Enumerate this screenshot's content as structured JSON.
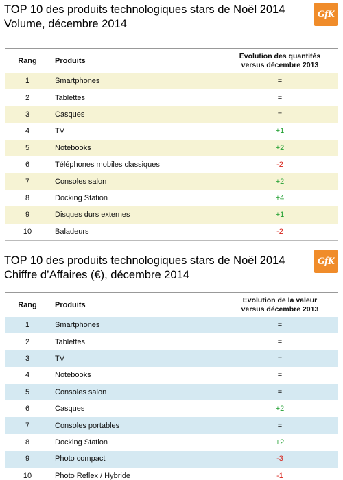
{
  "section1": {
    "title_line1": "TOP 10 des produits technologiques stars de Noël 2014",
    "title_line2": "Volume, décembre 2014",
    "logo": "GfK",
    "header": {
      "rank": "Rang",
      "product": "Produits",
      "evo_line1": "Evolution des quantités",
      "evo_line2": "versus décembre 2013"
    },
    "rows": [
      {
        "rank": "1",
        "product": "Smartphones",
        "evo": "="
      },
      {
        "rank": "2",
        "product": "Tablettes",
        "evo": "="
      },
      {
        "rank": "3",
        "product": "Casques",
        "evo": "="
      },
      {
        "rank": "4",
        "product": "TV",
        "evo": "+1"
      },
      {
        "rank": "5",
        "product": "Notebooks",
        "evo": "+2"
      },
      {
        "rank": "6",
        "product": "Téléphones mobiles classiques",
        "evo": "-2"
      },
      {
        "rank": "7",
        "product": "Consoles salon",
        "evo": "+2"
      },
      {
        "rank": "8",
        "product": "Docking Station",
        "evo": "+4"
      },
      {
        "rank": "9",
        "product": "Disques durs externes",
        "evo": "+1"
      },
      {
        "rank": "10",
        "product": "Baladeurs",
        "evo": "-2"
      }
    ]
  },
  "section2": {
    "title_line1": "TOP 10 des produits technologiques stars de Noël 2014",
    "title_line2": "Chiffre d’Affaires (€), décembre 2014",
    "logo": "GfK",
    "header": {
      "rank": "Rang",
      "product": "Produits",
      "evo_line1": "Evolution de la valeur",
      "evo_line2": "versus décembre 2013"
    },
    "rows": [
      {
        "rank": "1",
        "product": "Smartphones",
        "evo": "="
      },
      {
        "rank": "2",
        "product": "Tablettes",
        "evo": "="
      },
      {
        "rank": "3",
        "product": "TV",
        "evo": "="
      },
      {
        "rank": "4",
        "product": "Notebooks",
        "evo": "="
      },
      {
        "rank": "5",
        "product": "Consoles salon",
        "evo": "="
      },
      {
        "rank": "6",
        "product": "Casques",
        "evo": "+2"
      },
      {
        "rank": "7",
        "product": "Consoles portables",
        "evo": "="
      },
      {
        "rank": "8",
        "product": "Docking Station",
        "evo": "+2"
      },
      {
        "rank": "9",
        "product": "Photo compact",
        "evo": "-3"
      },
      {
        "rank": "10",
        "product": "Photo Reflex / Hybride",
        "evo": "-1"
      }
    ]
  }
}
